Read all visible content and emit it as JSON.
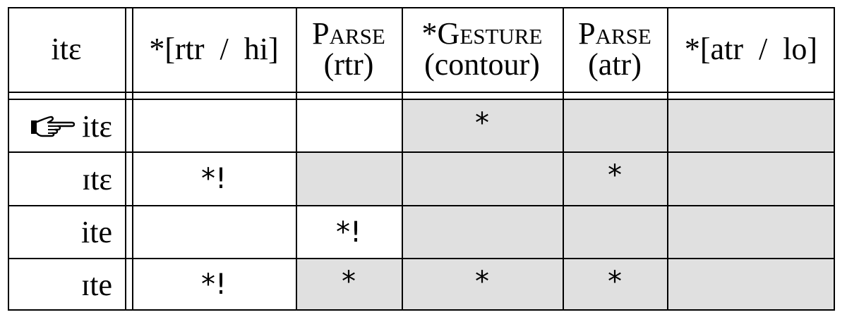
{
  "input": "itɛ",
  "constraints": [
    {
      "id": "c1",
      "lines": [
        "*[rtr  /  hi]"
      ]
    },
    {
      "id": "c2",
      "lines": [
        "Parse",
        "(rtr)"
      ],
      "smallcaps": true
    },
    {
      "id": "c3",
      "lines": [
        "*Gesture",
        "(contour)"
      ],
      "smallcaps": true
    },
    {
      "id": "c4",
      "lines": [
        "Parse",
        "(atr)"
      ],
      "smallcaps": true
    },
    {
      "id": "c5",
      "lines": [
        "*[atr  /  lo]"
      ]
    }
  ],
  "candidates": [
    {
      "form": "itɛ",
      "winner": true,
      "marks": [
        "",
        "",
        "*",
        "",
        ""
      ]
    },
    {
      "form": "ɪtɛ",
      "winner": false,
      "marks": [
        "*!",
        "",
        "",
        "*",
        ""
      ]
    },
    {
      "form": "ite",
      "winner": false,
      "marks": [
        "",
        "*!",
        "",
        "",
        ""
      ]
    },
    {
      "form": "ɪte",
      "winner": false,
      "marks": [
        "*!",
        "*",
        "*",
        "*",
        ""
      ]
    }
  ],
  "shading_color": "#e0e0e0",
  "winner_icon": "pointing-hand-icon"
}
